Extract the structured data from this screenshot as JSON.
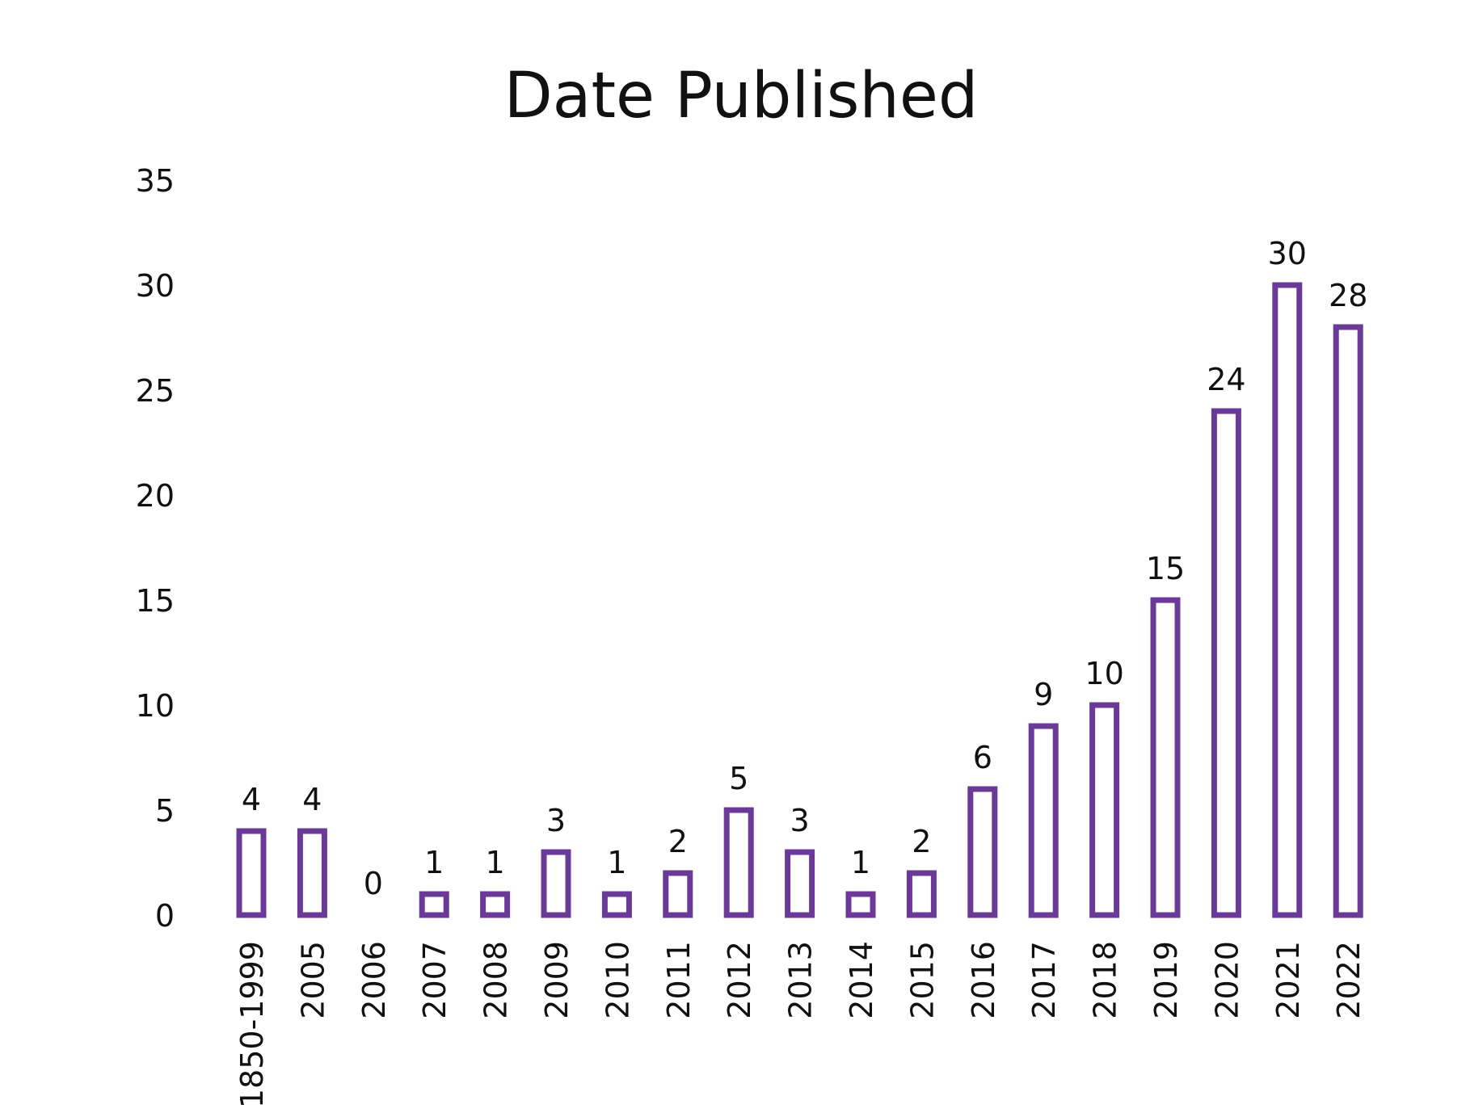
{
  "chart_data": {
    "type": "bar",
    "title": "Date Published",
    "xlabel": "",
    "ylabel": "",
    "ylim": [
      0,
      35
    ],
    "yticks": [
      0,
      5,
      10,
      15,
      20,
      25,
      30,
      35
    ],
    "grid": false,
    "legend": "none",
    "categories": [
      "1850-1999",
      "2005",
      "2006",
      "2007",
      "2008",
      "2009",
      "2010",
      "2011",
      "2012",
      "2013",
      "2014",
      "2015",
      "2016",
      "2017",
      "2018",
      "2019",
      "2020",
      "2021",
      "2022"
    ],
    "values": [
      4,
      4,
      0,
      1,
      1,
      3,
      1,
      2,
      5,
      3,
      1,
      2,
      6,
      9,
      10,
      15,
      24,
      30,
      28
    ],
    "bar_style": "outlined",
    "bar_color": "#6b3a99",
    "data_labels": true
  }
}
